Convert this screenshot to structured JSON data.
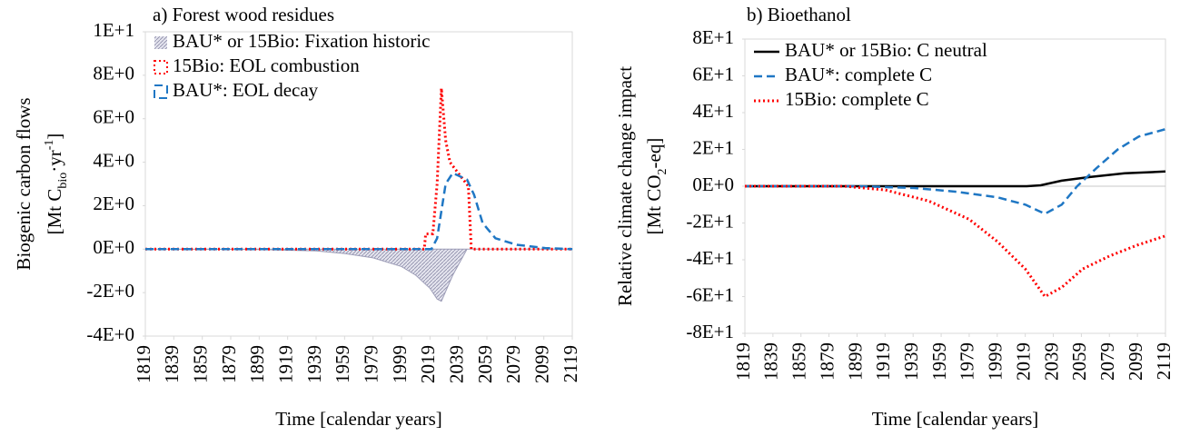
{
  "chart_data": [
    {
      "type": "line",
      "title": "a) Forest wood residues",
      "ylabel": "Biogenic carbon flows",
      "ylabel_unit": [
        "[Mt C",
        "bio",
        "·yr",
        "-1",
        "]"
      ],
      "ylabel_unit_shift": [
        "base",
        "sub",
        "base",
        "super",
        "base"
      ],
      "xlabel": "Time [calendar years]",
      "xlim": [
        1819,
        2119
      ],
      "xticks": [
        1819,
        1839,
        1859,
        1879,
        1899,
        1919,
        1939,
        1959,
        1979,
        1999,
        2019,
        2039,
        2059,
        2079,
        2099,
        2119
      ],
      "ylim": [
        -4,
        10
      ],
      "yticks": [
        {
          "value": 10,
          "label": "1E+1"
        },
        {
          "value": 8,
          "label": "8E+0"
        },
        {
          "value": 6,
          "label": "6E+0"
        },
        {
          "value": 4,
          "label": "4E+0"
        },
        {
          "value": 2,
          "label": "2E+0"
        },
        {
          "value": 0,
          "label": "0E+0"
        },
        {
          "value": -2,
          "label": "-2E+0"
        },
        {
          "value": -4,
          "label": "-4E+0"
        }
      ],
      "legend": "upper left",
      "legend_marker": "box",
      "zeroline": false,
      "series": [
        {
          "name": "BAU* or 15Bio: Fixation historic",
          "color": "#9e9eb8",
          "style": "area",
          "x": [
            1819,
            1899,
            1939,
            1959,
            1979,
            1999,
            2009,
            2019,
            2024,
            2027,
            2035,
            2045,
            2119
          ],
          "values": [
            0,
            -0.02,
            -0.08,
            -0.2,
            -0.4,
            -0.8,
            -1.2,
            -1.8,
            -2.3,
            -2.4,
            -1.2,
            0,
            0
          ]
        },
        {
          "name": "15Bio: EOL combustion",
          "color": "#ff0000",
          "style": "dotted",
          "x": [
            1819,
            2015,
            2016,
            2021,
            2024,
            2027,
            2030,
            2033,
            2040,
            2046,
            2048,
            2119
          ],
          "values": [
            0,
            0,
            0.7,
            0.7,
            3,
            7.4,
            5,
            4,
            3.4,
            2.9,
            0,
            0
          ]
        },
        {
          "name": "BAU*: EOL decay",
          "color": "#1f77c4",
          "style": "dashed",
          "x": [
            1819,
            2020,
            2024,
            2030,
            2035,
            2045,
            2050,
            2056,
            2065,
            2080,
            2100,
            2119
          ],
          "values": [
            0,
            0,
            0.5,
            3,
            3.5,
            3.2,
            2.5,
            1.2,
            0.5,
            0.2,
            0.05,
            0
          ]
        }
      ]
    },
    {
      "type": "line",
      "title": "b) Bioethanol",
      "ylabel": "Relative climate change impact",
      "ylabel_unit": [
        "[Mt CO",
        "2",
        "-eq]"
      ],
      "ylabel_unit_shift": [
        "base",
        "sub",
        "base"
      ],
      "xlabel": "Time [calendar years]",
      "xlim": [
        1819,
        2119
      ],
      "xticks": [
        1819,
        1839,
        1859,
        1879,
        1899,
        1919,
        1939,
        1959,
        1979,
        1999,
        2019,
        2039,
        2059,
        2079,
        2099,
        2119
      ],
      "ylim": [
        -80,
        80
      ],
      "yticks": [
        {
          "value": 80,
          "label": "8E+1"
        },
        {
          "value": 60,
          "label": "6E+1"
        },
        {
          "value": 40,
          "label": "4E+1"
        },
        {
          "value": 20,
          "label": "2E+1"
        },
        {
          "value": 0,
          "label": "0E+0"
        },
        {
          "value": -20,
          "label": "-2E+1"
        },
        {
          "value": -40,
          "label": "-4E+1"
        },
        {
          "value": -60,
          "label": "-6E+1"
        },
        {
          "value": -80,
          "label": "-8E+1"
        }
      ],
      "legend": "upper left",
      "legend_marker": "line",
      "zeroline": true,
      "series": [
        {
          "name": "BAU* or 15Bio: C neutral",
          "color": "#000000",
          "style": "solid",
          "x": [
            1819,
            2020,
            2030,
            2045,
            2065,
            2090,
            2119
          ],
          "values": [
            0,
            0,
            0.5,
            3,
            5,
            7,
            8
          ]
        },
        {
          "name": "BAU*: complete C",
          "color": "#1f77c4",
          "style": "dashed",
          "x": [
            1819,
            1900,
            1940,
            1970,
            1999,
            2019,
            2033,
            2045,
            2056,
            2070,
            2085,
            2100,
            2119
          ],
          "values": [
            0,
            0,
            -1,
            -3,
            -6,
            -10,
            -15,
            -10,
            0,
            10,
            20,
            27,
            31
          ]
        },
        {
          "name": "15Bio: complete C",
          "color": "#ff0000",
          "style": "dotted",
          "x": [
            1819,
            1890,
            1919,
            1950,
            1979,
            1999,
            2019,
            2033,
            2045,
            2060,
            2079,
            2099,
            2119
          ],
          "values": [
            0,
            0,
            -2,
            -8,
            -18,
            -30,
            -45,
            -60,
            -55,
            -45,
            -38,
            -32,
            -27
          ]
        }
      ]
    }
  ]
}
